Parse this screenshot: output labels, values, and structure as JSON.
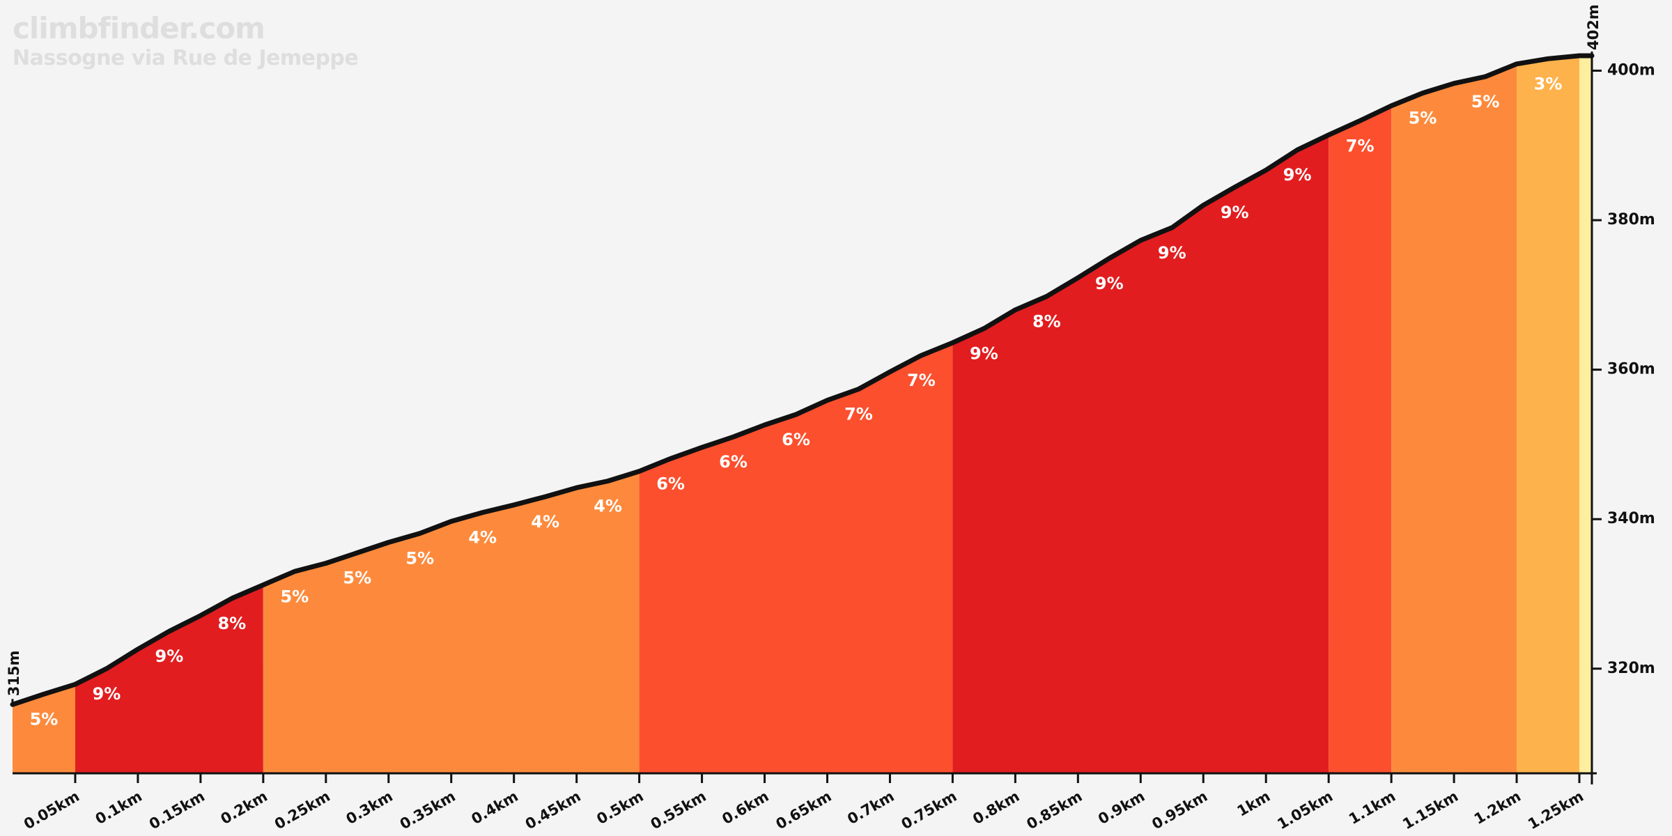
{
  "brand": {
    "site": "climbfinder.com",
    "climb_name": "Nassogne via Rue de Jemeppe"
  },
  "chart_data": {
    "type": "area",
    "title": "Nassogne via Rue de Jemeppe",
    "xlabel": "",
    "ylabel": "",
    "x_unit": "km",
    "y_unit": "m",
    "x_range": [
      0,
      1.265
    ],
    "y_range": [
      306,
      402
    ],
    "y_ticks": [
      320,
      340,
      360,
      380,
      400
    ],
    "y_tick_labels": [
      "320m",
      "340m",
      "360m",
      "380m",
      "400m"
    ],
    "x_ticks": [
      0.05,
      0.1,
      0.15,
      0.2,
      0.25,
      0.3,
      0.35,
      0.4,
      0.45,
      0.5,
      0.55,
      0.6,
      0.65,
      0.7,
      0.75,
      0.8,
      0.85,
      0.9,
      0.95,
      1.0,
      1.05,
      1.1,
      1.15,
      1.2,
      1.25
    ],
    "x_tick_labels": [
      "0.05km",
      "0.1km",
      "0.15km",
      "0.2km",
      "0.25km",
      "0.3km",
      "0.35km",
      "0.4km",
      "0.45km",
      "0.5km",
      "0.55km",
      "0.6km",
      "0.65km",
      "0.7km",
      "0.75km",
      "0.8km",
      "0.85km",
      "0.9km",
      "0.95km",
      "1km",
      "1.05km",
      "1.1km",
      "1.15km",
      "1.2km",
      "1.25km"
    ],
    "start_label": "315m",
    "end_label": "402m",
    "profile": [
      [
        0,
        315.2
      ],
      [
        0.025,
        316.6
      ],
      [
        0.05,
        317.9
      ],
      [
        0.075,
        320.0
      ],
      [
        0.1,
        322.6
      ],
      [
        0.125,
        325.0
      ],
      [
        0.15,
        327.1
      ],
      [
        0.175,
        329.4
      ],
      [
        0.2,
        331.2
      ],
      [
        0.225,
        333.0
      ],
      [
        0.25,
        334.1
      ],
      [
        0.275,
        335.5
      ],
      [
        0.3,
        336.9
      ],
      [
        0.325,
        338.1
      ],
      [
        0.35,
        339.7
      ],
      [
        0.375,
        340.9
      ],
      [
        0.4,
        341.9
      ],
      [
        0.425,
        343.0
      ],
      [
        0.45,
        344.2
      ],
      [
        0.475,
        345.1
      ],
      [
        0.5,
        346.4
      ],
      [
        0.525,
        348.1
      ],
      [
        0.55,
        349.6
      ],
      [
        0.575,
        351.0
      ],
      [
        0.6,
        352.6
      ],
      [
        0.625,
        354.0
      ],
      [
        0.65,
        355.9
      ],
      [
        0.675,
        357.4
      ],
      [
        0.7,
        359.7
      ],
      [
        0.725,
        361.9
      ],
      [
        0.75,
        363.6
      ],
      [
        0.775,
        365.5
      ],
      [
        0.8,
        368.0
      ],
      [
        0.825,
        369.8
      ],
      [
        0.85,
        372.3
      ],
      [
        0.875,
        374.9
      ],
      [
        0.9,
        377.3
      ],
      [
        0.925,
        379.0
      ],
      [
        0.95,
        382.0
      ],
      [
        0.975,
        384.4
      ],
      [
        1.0,
        386.7
      ],
      [
        1.025,
        389.4
      ],
      [
        1.05,
        391.4
      ],
      [
        1.075,
        393.3
      ],
      [
        1.1,
        395.3
      ],
      [
        1.125,
        397.0
      ],
      [
        1.15,
        398.3
      ],
      [
        1.175,
        399.2
      ],
      [
        1.2,
        400.9
      ],
      [
        1.225,
        401.6
      ],
      [
        1.25,
        402.0
      ],
      [
        1.26,
        402.0
      ]
    ],
    "segments": [
      {
        "start": 0.0,
        "end": 0.05,
        "gradient": "5%",
        "color": "#fd8a3c"
      },
      {
        "start": 0.05,
        "end": 0.2,
        "gradient": "",
        "color": "#e21d1f"
      },
      {
        "start": 0.2,
        "end": 0.5,
        "gradient": "",
        "color": "#fd8a3c"
      },
      {
        "start": 0.5,
        "end": 0.75,
        "gradient": "",
        "color": "#fc4f2e"
      },
      {
        "start": 0.75,
        "end": 1.05,
        "gradient": "",
        "color": "#e21d1f"
      },
      {
        "start": 1.05,
        "end": 1.1,
        "gradient": "",
        "color": "#fc4f2e"
      },
      {
        "start": 1.1,
        "end": 1.2,
        "gradient": "",
        "color": "#fd8a3c"
      },
      {
        "start": 1.2,
        "end": 1.25,
        "gradient": "",
        "color": "#feb24c"
      },
      {
        "start": 1.25,
        "end": 1.26,
        "gradient": "",
        "color": "#ffeda0"
      }
    ],
    "gradient_labels": [
      {
        "x": 0.025,
        "label": "5%"
      },
      {
        "x": 0.075,
        "label": "9%"
      },
      {
        "x": 0.125,
        "label": "9%"
      },
      {
        "x": 0.175,
        "label": "8%"
      },
      {
        "x": 0.225,
        "label": "5%"
      },
      {
        "x": 0.275,
        "label": "5%"
      },
      {
        "x": 0.325,
        "label": "5%"
      },
      {
        "x": 0.375,
        "label": "4%"
      },
      {
        "x": 0.425,
        "label": "4%"
      },
      {
        "x": 0.475,
        "label": "4%"
      },
      {
        "x": 0.525,
        "label": "6%"
      },
      {
        "x": 0.575,
        "label": "6%"
      },
      {
        "x": 0.625,
        "label": "6%"
      },
      {
        "x": 0.675,
        "label": "7%"
      },
      {
        "x": 0.725,
        "label": "7%"
      },
      {
        "x": 0.775,
        "label": "9%"
      },
      {
        "x": 0.825,
        "label": "8%"
      },
      {
        "x": 0.875,
        "label": "9%"
      },
      {
        "x": 0.925,
        "label": "9%"
      },
      {
        "x": 0.975,
        "label": "9%"
      },
      {
        "x": 1.025,
        "label": "9%"
      },
      {
        "x": 1.075,
        "label": "7%"
      },
      {
        "x": 1.125,
        "label": "5%"
      },
      {
        "x": 1.175,
        "label": "5%"
      },
      {
        "x": 1.225,
        "label": "3%"
      }
    ],
    "grid": false,
    "colors": {
      "background": "#f4f4f4",
      "line": "#111111",
      "axis": "#111111",
      "label": "#ffffff",
      "brand": "#dedede"
    }
  }
}
